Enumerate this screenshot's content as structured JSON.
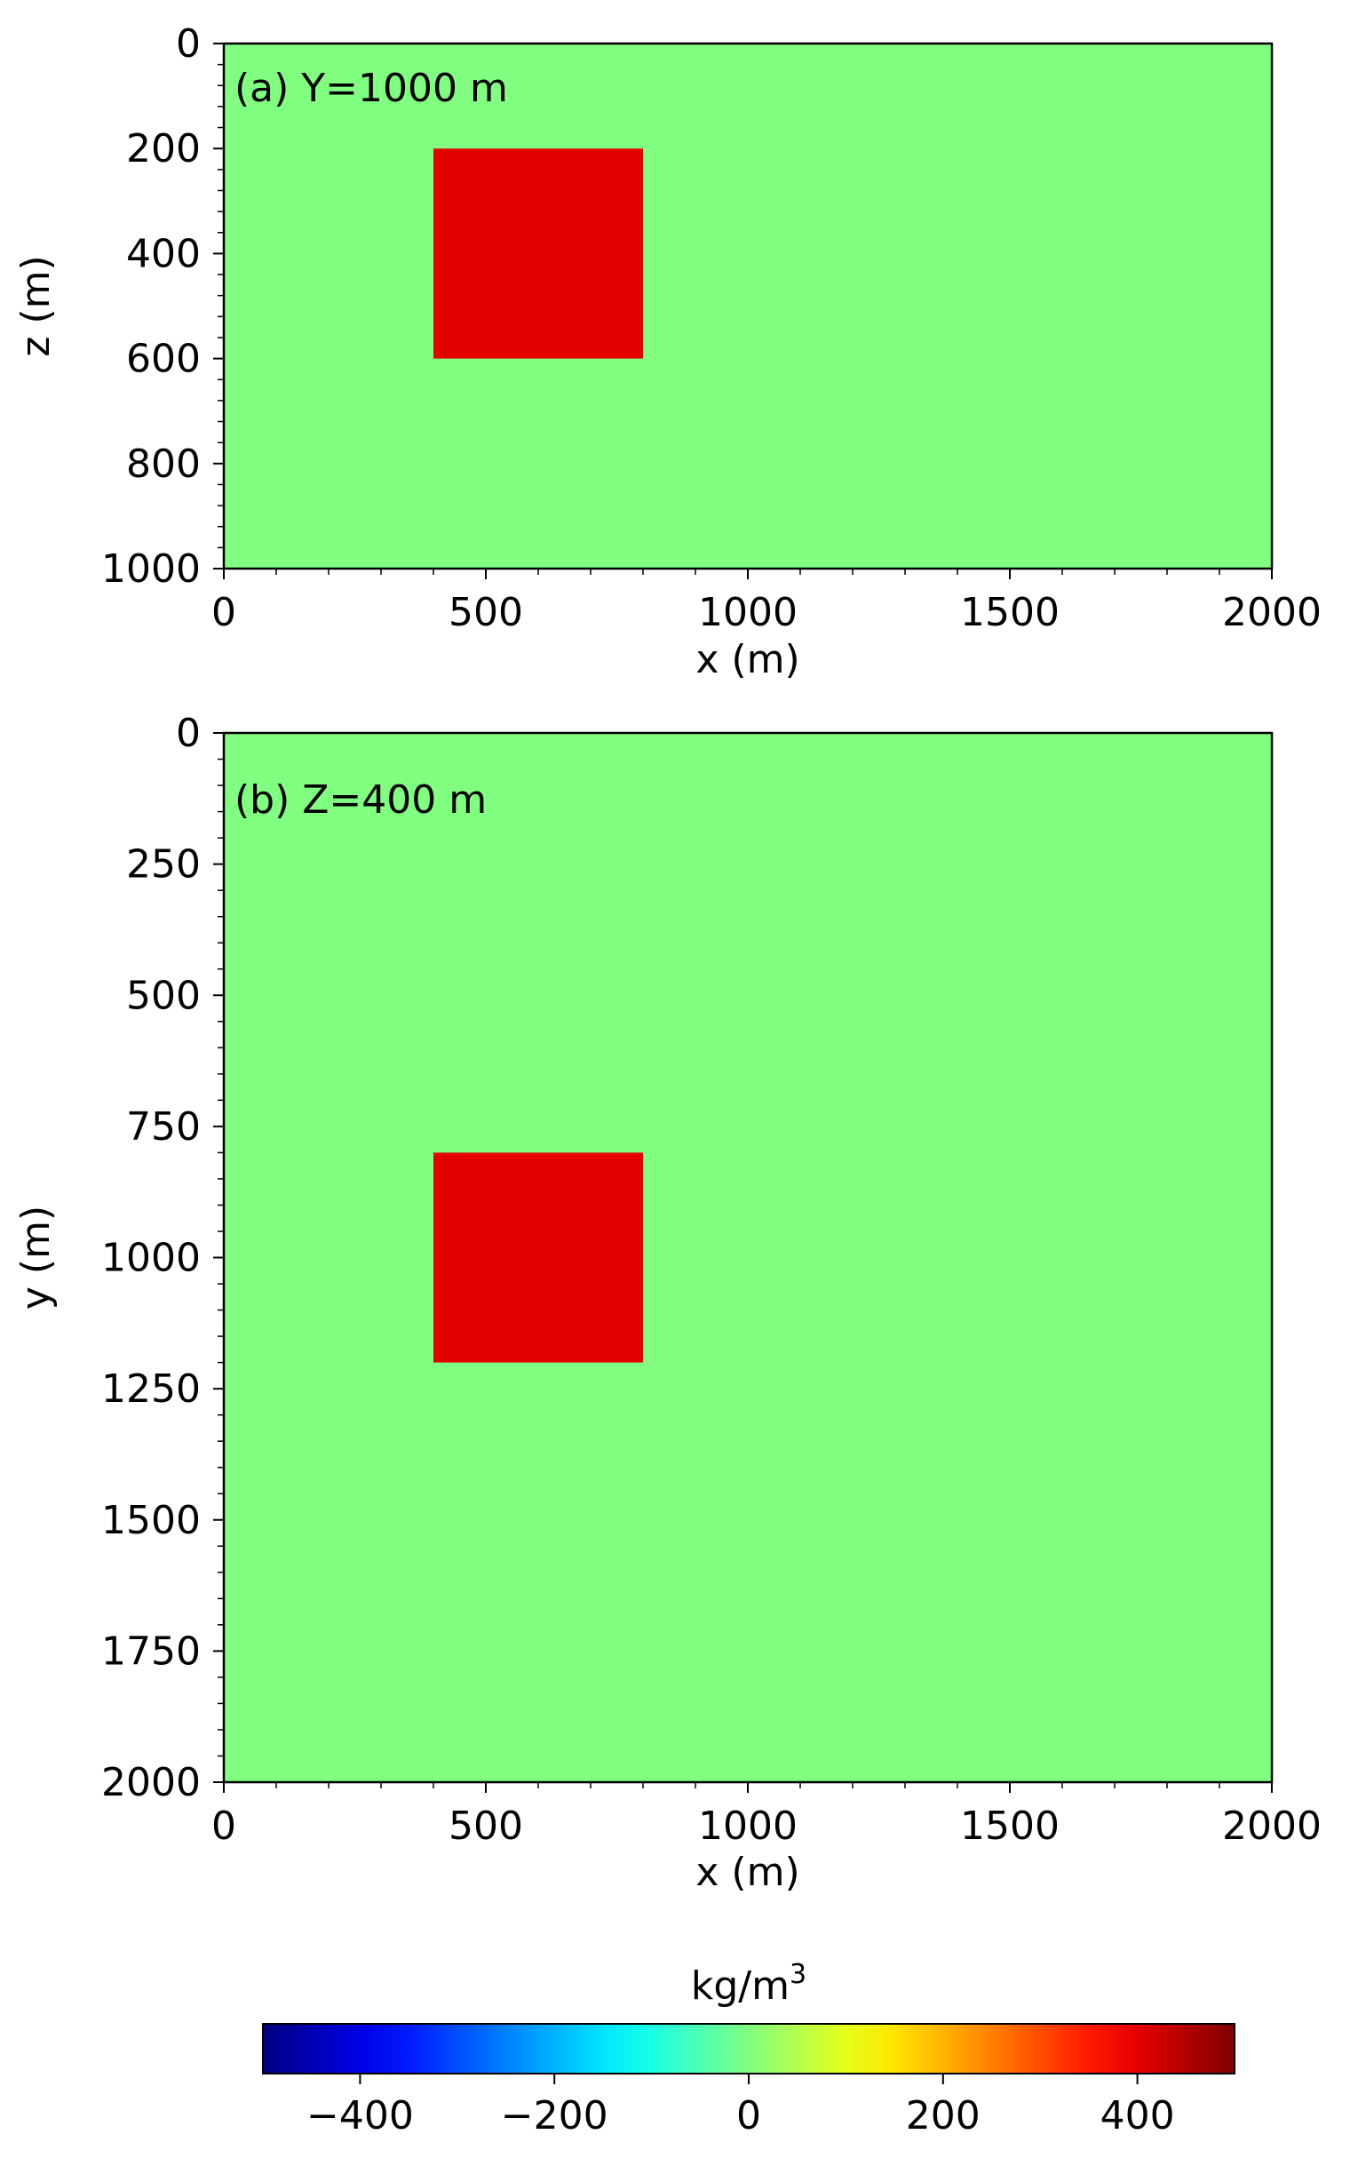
{
  "chart_data": [
    {
      "type": "heatmap",
      "panel_label": "(a) Y=1000 m",
      "xlabel": "x (m)",
      "ylabel": "z (m)",
      "xlim": [
        0,
        2000
      ],
      "ylim": [
        1000,
        0
      ],
      "y_inverted": true,
      "xticks": [
        0,
        500,
        1000,
        1500,
        2000
      ],
      "yticks": [
        0,
        200,
        400,
        600,
        800,
        1000
      ],
      "background_value": 0,
      "blocks": [
        {
          "x": [
            400,
            800
          ],
          "y": [
            200,
            600
          ],
          "value": 400
        }
      ]
    },
    {
      "type": "heatmap",
      "panel_label": "(b) Z=400 m",
      "xlabel": "x (m)",
      "ylabel": "y (m)",
      "xlim": [
        0,
        2000
      ],
      "ylim": [
        2000,
        0
      ],
      "y_inverted": true,
      "xticks": [
        0,
        500,
        1000,
        1500,
        2000
      ],
      "yticks": [
        0,
        250,
        500,
        750,
        1000,
        1250,
        1500,
        1750,
        2000
      ],
      "background_value": 0,
      "blocks": [
        {
          "x": [
            400,
            800
          ],
          "y": [
            800,
            1200
          ],
          "value": 400
        }
      ]
    }
  ],
  "colorbar": {
    "title_base": "kg/m",
    "title_sup": "3",
    "colormap": "jet",
    "range": [
      -500,
      500
    ],
    "ticks": [
      -400,
      -200,
      0,
      200,
      400
    ]
  }
}
